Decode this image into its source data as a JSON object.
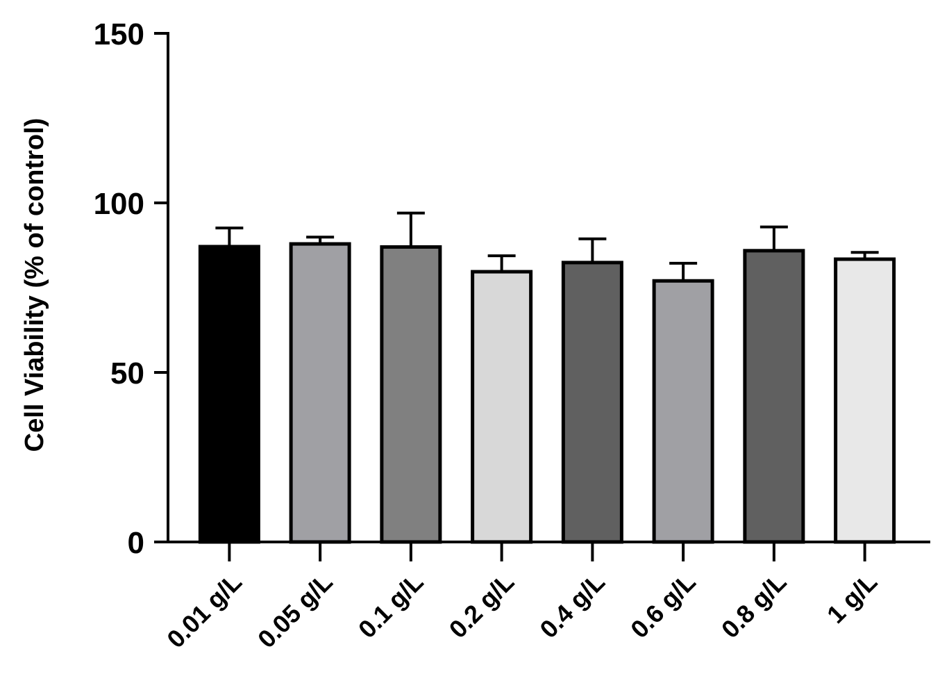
{
  "chart_data": {
    "type": "bar",
    "y_label": "Cell Viability (%  of control)",
    "categories": [
      "0.01 g/L",
      "0.05 g/L",
      "0.1 g/L",
      "0.2 g/L",
      "0.4 g/L",
      "0.6 g/L",
      "0.8 g/L",
      "1 g/L"
    ],
    "values": [
      87.1,
      87.9,
      87,
      79.7,
      82.4,
      77,
      85.9,
      83.4
    ],
    "errors": [
      5.5,
      2,
      10,
      4.7,
      7,
      5.2,
      7,
      2
    ],
    "colors": [
      "#000000",
      "#a0a0a4",
      "#808080",
      "#d8d8d8",
      "#606060",
      "#a0a0a4",
      "#606060",
      "#e8e8e8"
    ],
    "ylim": [
      0,
      150
    ],
    "yticks": [
      0,
      50,
      100,
      150
    ],
    "grid": false
  }
}
